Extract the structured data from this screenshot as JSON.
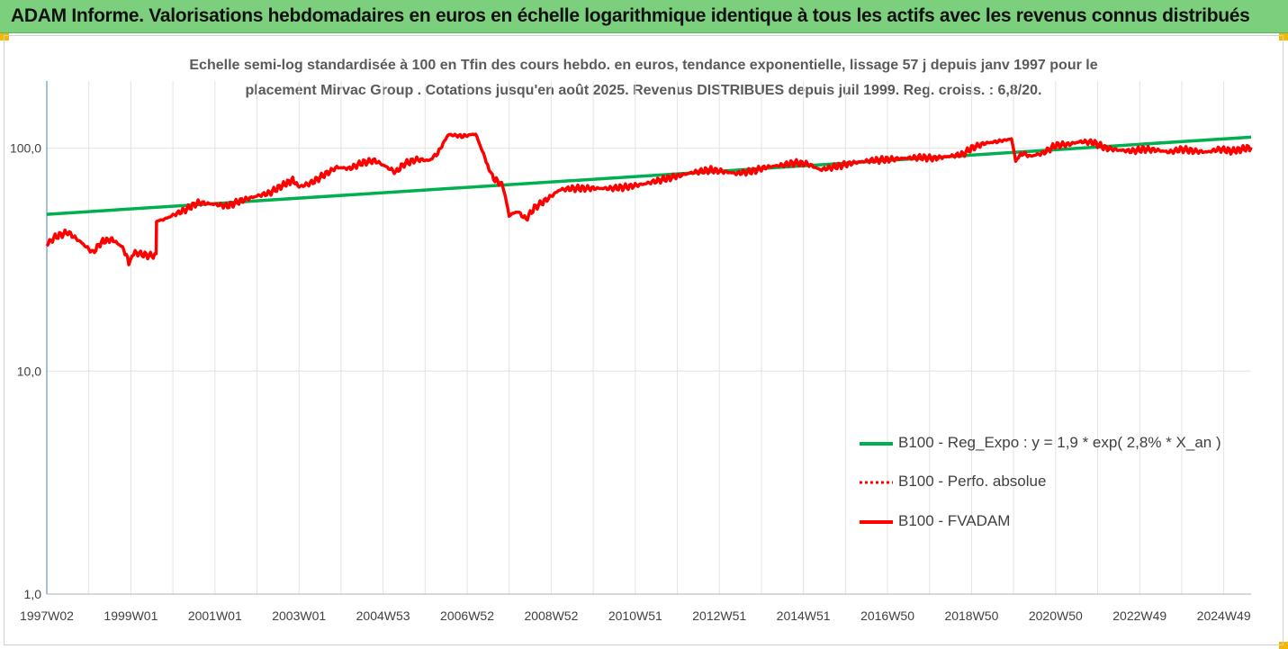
{
  "header": {
    "title": "ADAM Informe. Valorisations hebdomadaires en euros en échelle logarithmique identique à tous les actifs avec les revenus connus distribués"
  },
  "chart_data": {
    "type": "line",
    "subtitle_line1": "Echelle semi-log standardisée à 100 en Tfin des cours hebdo. en euros, tendance exponentielle, lissage 57 j depuis janv 1997 pour le",
    "subtitle_line2": "placement Mirvac Group . Cotations jusqu'en août 2025. Revenus DISTRIBUES depuis juil 1999. Reg. croiss. : 6,8/20.",
    "y_scale": "log",
    "ylim": [
      1,
      200
    ],
    "y_ticks": [
      {
        "value": 1,
        "label": "1,0"
      },
      {
        "value": 10,
        "label": "10,0"
      },
      {
        "value": 100,
        "label": "100,0"
      }
    ],
    "x_range": [
      1997.0,
      2025.65
    ],
    "x_ticks": [
      {
        "x": 1997.0,
        "label": "1997W02"
      },
      {
        "x": 1999.0,
        "label": "1999W01"
      },
      {
        "x": 2001.0,
        "label": "2001W01"
      },
      {
        "x": 2003.0,
        "label": "2003W01"
      },
      {
        "x": 2005.0,
        "label": "2004W53"
      },
      {
        "x": 2007.0,
        "label": "2006W52"
      },
      {
        "x": 2009.0,
        "label": "2008W52"
      },
      {
        "x": 2011.0,
        "label": "2010W51"
      },
      {
        "x": 2013.0,
        "label": "2012W51"
      },
      {
        "x": 2015.0,
        "label": "2014W51"
      },
      {
        "x": 2017.0,
        "label": "2016W50"
      },
      {
        "x": 2019.0,
        "label": "2018W50"
      },
      {
        "x": 2021.0,
        "label": "2020W50"
      },
      {
        "x": 2023.0,
        "label": "2022W49"
      },
      {
        "x": 2025.0,
        "label": "2024W49"
      }
    ],
    "grid": "vertical",
    "legend_position": "bottom-right",
    "series": [
      {
        "name": "B100 - Reg_Expo : y = 1,9 * exp( 2,8% *  X_an )",
        "color": "#00b050",
        "style": "solid",
        "x": [
          1997.0,
          2025.65
        ],
        "y": [
          50.5,
          112.0
        ]
      },
      {
        "name": "B100 - Perfo. absolue",
        "color": "#ff0000",
        "style": "dotted",
        "x": [],
        "y": []
      },
      {
        "name": "B100 - FVADAM",
        "color": "#ff0000",
        "style": "solid",
        "x": [
          1997.0,
          1997.2,
          1997.5,
          1997.8,
          1998.1,
          1998.3,
          1998.55,
          1998.8,
          1998.95,
          1999.1,
          1999.4,
          1999.6,
          1999.61,
          1999.8,
          2000.0,
          2000.3,
          2000.6,
          2001.0,
          2001.3,
          2001.6,
          2002.0,
          2002.3,
          2002.6,
          2002.85,
          2003.0,
          2003.3,
          2003.6,
          2003.9,
          2004.2,
          2004.5,
          2004.8,
          2005.0,
          2005.3,
          2005.5,
          2005.8,
          2006.1,
          2006.3,
          2006.55,
          2006.9,
          2007.2,
          2007.45,
          2007.6,
          2007.85,
          2008.0,
          2008.2,
          2008.4,
          2008.6,
          2008.9,
          2009.2,
          2009.5,
          2009.8,
          2010.1,
          2010.4,
          2010.8,
          2011.2,
          2011.6,
          2012.0,
          2012.4,
          2012.8,
          2013.0,
          2013.4,
          2013.8,
          2014.1,
          2014.5,
          2014.8,
          2015.1,
          2015.4,
          2015.8,
          2016.2,
          2016.6,
          2017.0,
          2017.4,
          2017.8,
          2018.1,
          2018.5,
          2018.8,
          2019.0,
          2019.3,
          2019.6,
          2019.95,
          2020.05,
          2020.2,
          2020.4,
          2020.7,
          2021.0,
          2021.3,
          2021.6,
          2021.9,
          2022.2,
          2022.5,
          2022.8,
          2023.1,
          2023.4,
          2023.7,
          2024.0,
          2024.3,
          2024.6,
          2024.9,
          2025.2,
          2025.65
        ],
        "y": [
          37,
          40,
          42,
          38,
          34,
          38,
          39,
          36,
          31,
          34,
          33,
          33,
          47,
          48,
          50,
          53,
          57,
          56,
          55,
          58,
          61,
          63,
          68,
          72,
          67,
          70,
          76,
          82,
          81,
          86,
          88,
          84,
          78,
          85,
          89,
          88,
          95,
          115,
          113,
          116,
          88,
          74,
          68,
          50,
          52,
          48,
          54,
          59,
          65,
          66,
          66,
          66,
          66,
          67,
          69,
          72,
          75,
          78,
          80,
          79,
          77,
          79,
          82,
          84,
          86,
          85,
          80,
          83,
          86,
          88,
          89,
          90,
          91,
          90,
          92,
          94,
          100,
          105,
          107,
          110,
          88,
          95,
          92,
          95,
          103,
          104,
          107,
          106,
          100,
          98,
          97,
          99,
          98,
          96,
          99,
          97,
          96,
          99,
          97,
          101
        ]
      }
    ]
  }
}
